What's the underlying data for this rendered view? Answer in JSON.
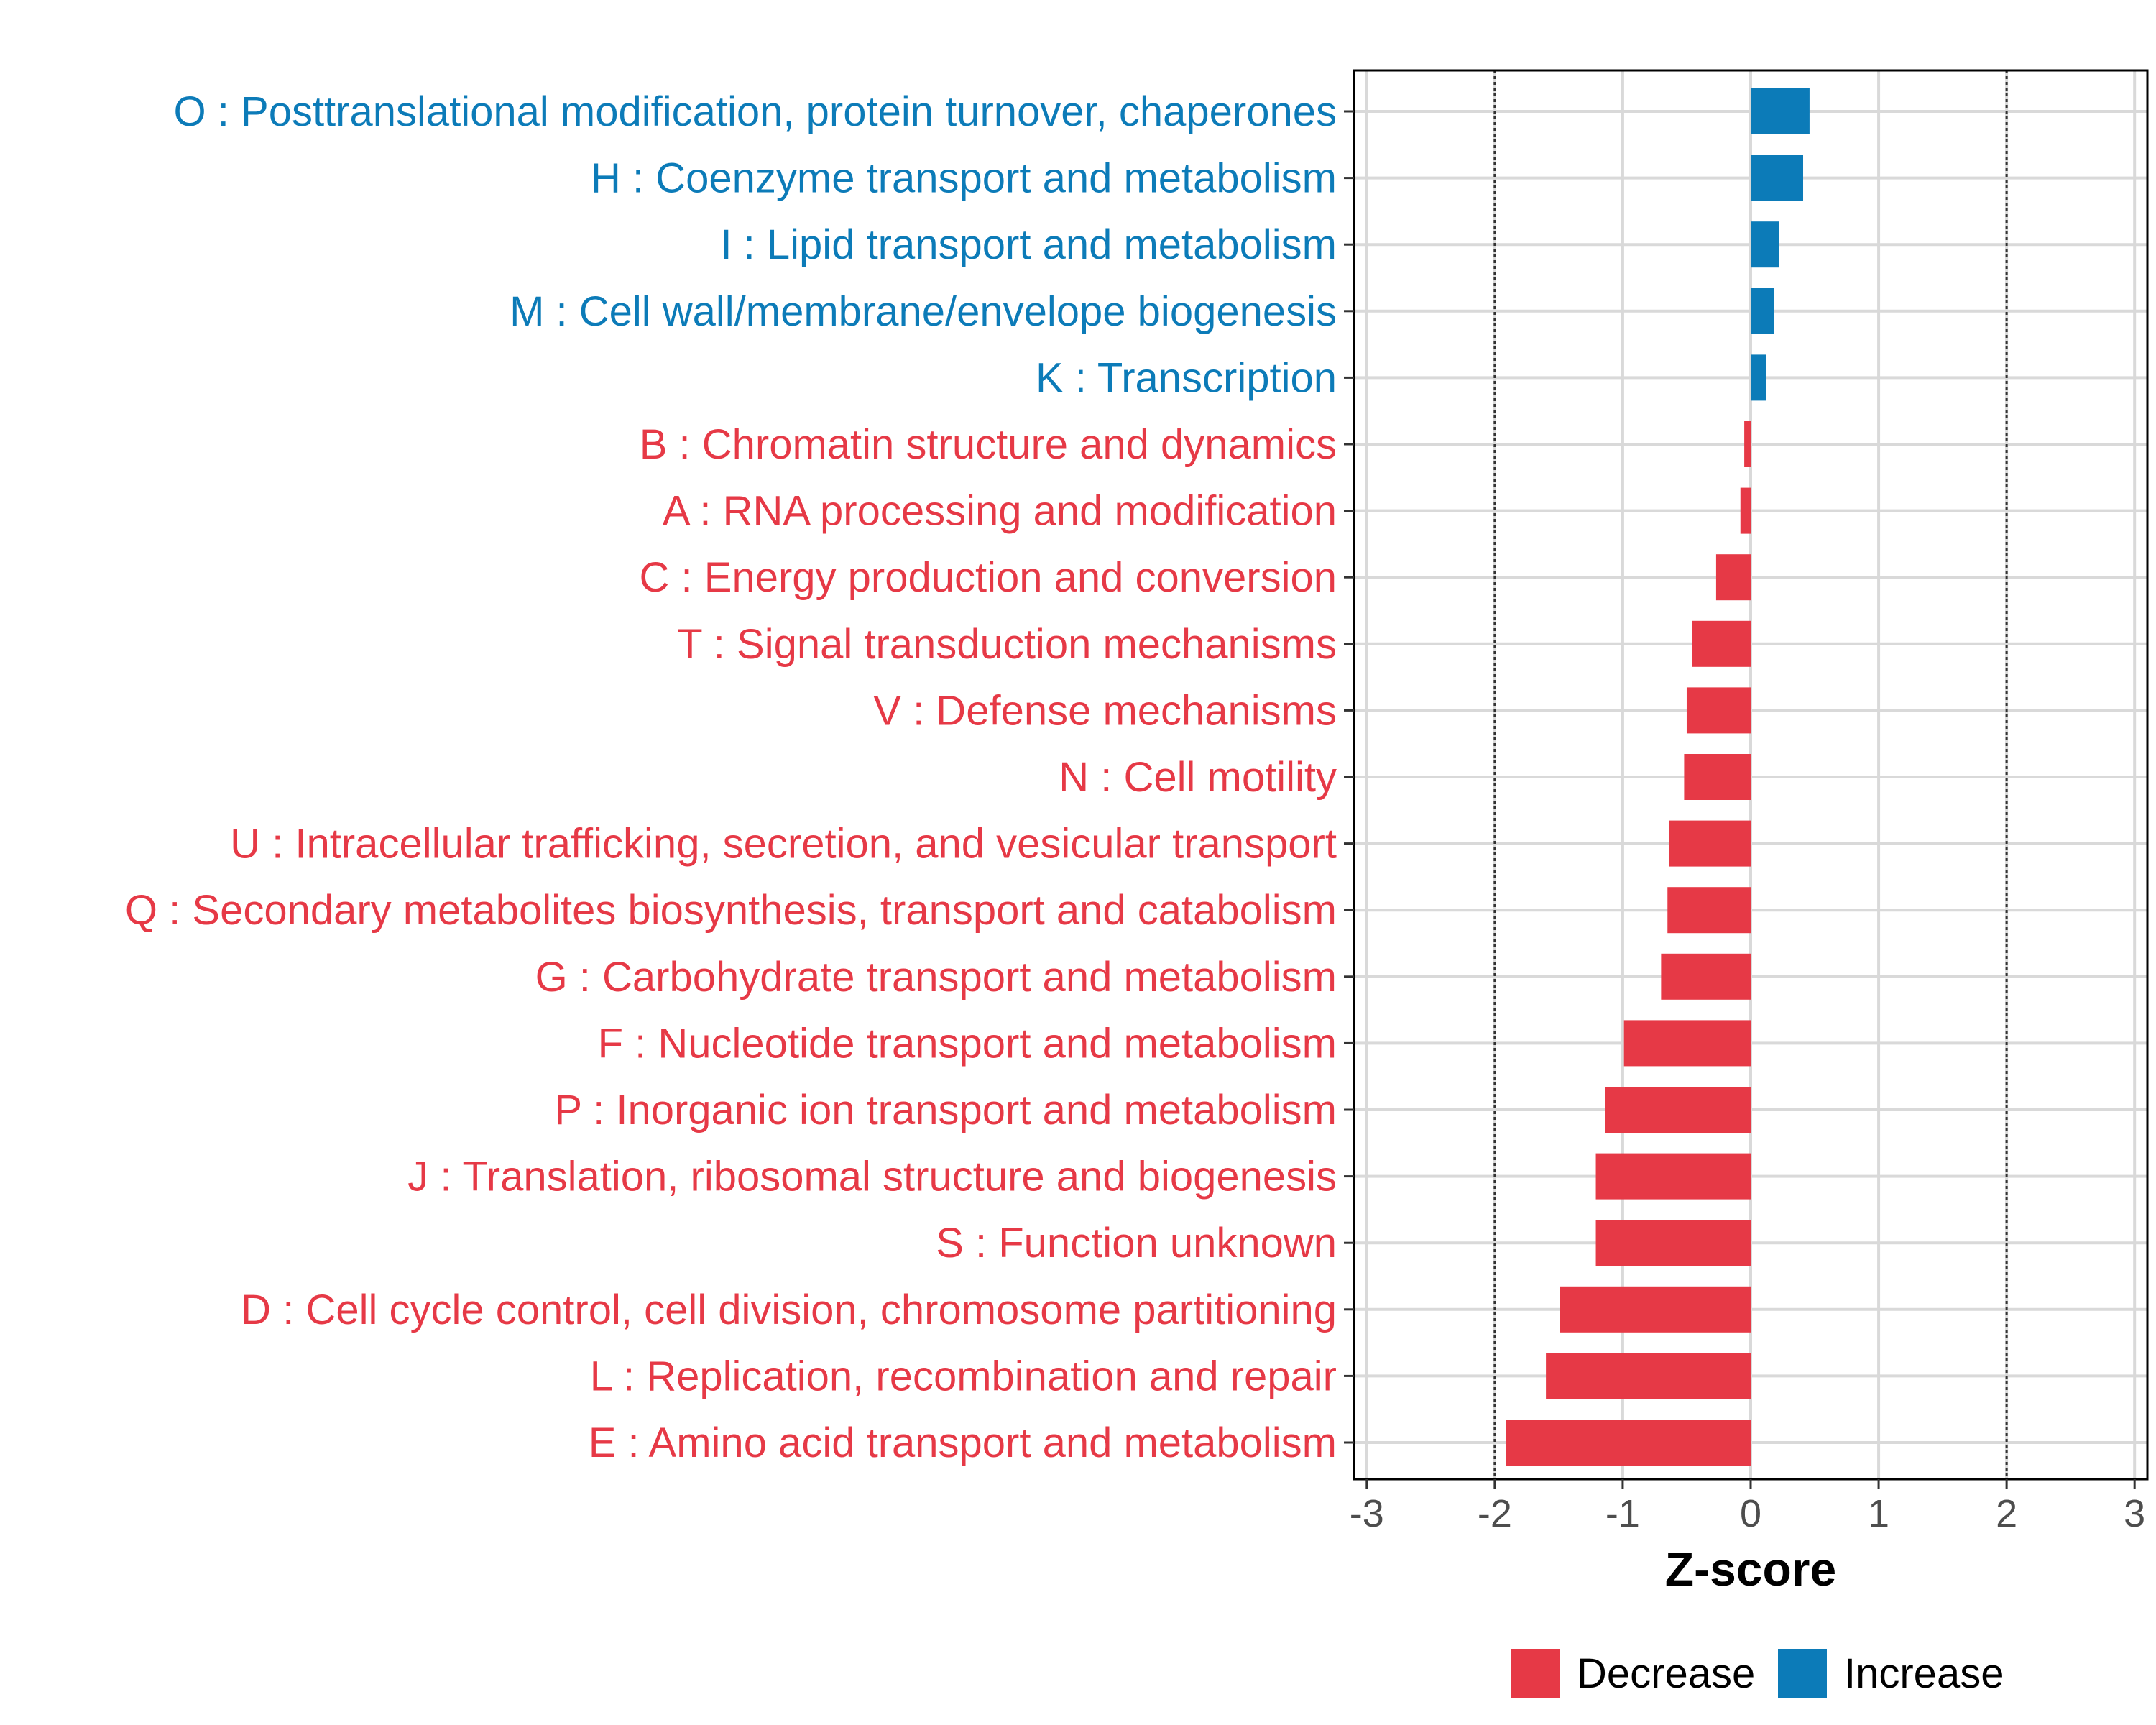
{
  "chart_data": {
    "type": "bar",
    "orientation": "horizontal",
    "title": "",
    "xlabel": "Z-score",
    "ylabel": "",
    "xlim": [
      -3.1,
      3.1
    ],
    "x_ticks": [
      "-3",
      "-2",
      "-1",
      "0",
      "1",
      "2",
      "3"
    ],
    "x_tick_values": [
      -3,
      -2,
      -1,
      0,
      1,
      2,
      3
    ],
    "reference_lines": [
      -2,
      2
    ],
    "grid": true,
    "legend_position": "bottom",
    "colors": {
      "decrease": "#e63946",
      "increase": "#0c7bb8"
    },
    "legend": [
      {
        "name": "Decrease",
        "color_key": "decrease"
      },
      {
        "name": "Increase",
        "color_key": "increase"
      }
    ],
    "categories": [
      "O : Posttranslational modification, protein turnover, chaperones",
      "H : Coenzyme transport and metabolism",
      "I : Lipid transport and metabolism",
      "M : Cell wall/membrane/envelope biogenesis",
      "K : Transcription",
      "B : Chromatin structure and dynamics",
      "A : RNA processing and modification",
      "C : Energy production and conversion",
      "T : Signal transduction mechanisms",
      "V : Defense mechanisms",
      "N : Cell motility",
      "U : Intracellular trafficking, secretion, and vesicular transport",
      "Q : Secondary metabolites biosynthesis, transport and catabolism",
      "G : Carbohydrate transport and metabolism",
      "F : Nucleotide transport and metabolism",
      "P : Inorganic ion transport and metabolism",
      "J : Translation, ribosomal structure and biogenesis",
      "S : Function unknown",
      "D : Cell cycle control, cell division, chromosome partitioning",
      "L : Replication, recombination and repair",
      "E : Amino acid transport and metabolism"
    ],
    "values": [
      0.46,
      0.41,
      0.22,
      0.18,
      0.12,
      -0.05,
      -0.08,
      -0.27,
      -0.46,
      -0.5,
      -0.52,
      -0.64,
      -0.65,
      -0.7,
      -0.99,
      -1.14,
      -1.21,
      -1.21,
      -1.49,
      -1.6,
      -1.91
    ],
    "groups": [
      "Increase",
      "Increase",
      "Increase",
      "Increase",
      "Increase",
      "Decrease",
      "Decrease",
      "Decrease",
      "Decrease",
      "Decrease",
      "Decrease",
      "Decrease",
      "Decrease",
      "Decrease",
      "Decrease",
      "Decrease",
      "Decrease",
      "Decrease",
      "Decrease",
      "Decrease",
      "Decrease"
    ]
  }
}
